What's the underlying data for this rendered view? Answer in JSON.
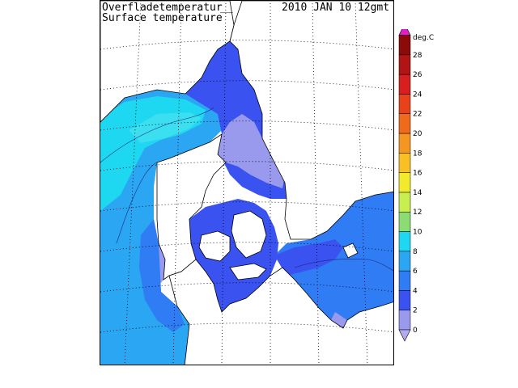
{
  "title": {
    "line1": "Overfladetemperatur",
    "placeholder": "__",
    "line2": "Surface temperature",
    "timestamp": "2010 JAN 10 12gmt"
  },
  "legend": {
    "unit": "deg.C",
    "levels": [
      {
        "value": "0",
        "color": "#9999ee"
      },
      {
        "value": "2",
        "color": "#3a52f0"
      },
      {
        "value": "4",
        "color": "#2f7cf5"
      },
      {
        "value": "6",
        "color": "#2aa6f2"
      },
      {
        "value": "8",
        "color": "#1ed8f2"
      },
      {
        "value": "10",
        "color": "#8cdc74"
      },
      {
        "value": "12",
        "color": "#c8ee50"
      },
      {
        "value": "14",
        "color": "#f2ea2c"
      },
      {
        "value": "16",
        "color": "#f8c024"
      },
      {
        "value": "18",
        "color": "#f59620"
      },
      {
        "value": "20",
        "color": "#f06a1c"
      },
      {
        "value": "22",
        "color": "#e8421a"
      },
      {
        "value": "24",
        "color": "#d81e1e"
      },
      {
        "value": "26",
        "color": "#b01414"
      },
      {
        "value": "28",
        "color": "#8c0a0a"
      }
    ],
    "top_arrow_color": "#e020c8",
    "bottom_arrow_color": "#b4aaf0"
  },
  "colors": {
    "sea_cold": "#3a52f0",
    "sea_mid": "#2f7cf5",
    "sea_warm": "#2aa6f2",
    "sea_warmest": "#1ed8f2",
    "sea_near_zero": "#9999ee",
    "land": "#ffffff",
    "coast": "#000000",
    "grid": "#000000"
  }
}
